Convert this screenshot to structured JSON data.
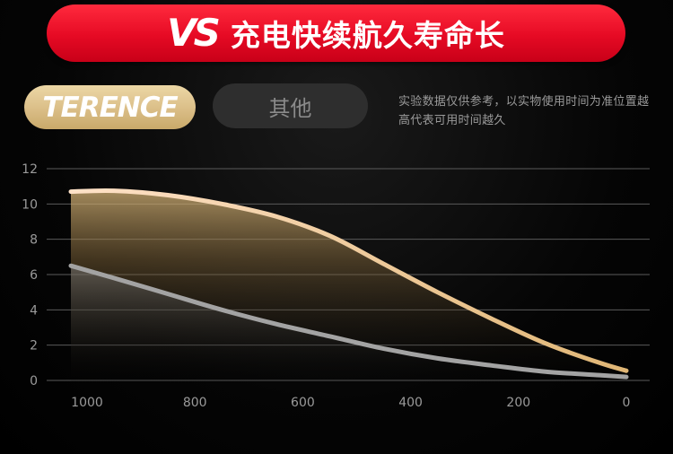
{
  "banner": {
    "logo": "VS",
    "title": "充电快续航久寿命长"
  },
  "legend": {
    "brand": "TERENCE",
    "other": "其他"
  },
  "note": "实验数据仅供参考，以实物使用时间为准位置越高代表可用时间越久",
  "colors": {
    "banner": "#e60a24",
    "terence_line": "#f0d6a8",
    "other_line": "#9a9a9a",
    "legend_gold": "#dcc08a",
    "legend_grey": "#2e2e2e"
  },
  "chart_data": {
    "type": "area",
    "x_reversed": true,
    "xlim": [
      1030,
      0
    ],
    "ylim": [
      0,
      12
    ],
    "x_ticks": [
      1000,
      800,
      600,
      400,
      200,
      0
    ],
    "y_ticks": [
      0,
      2,
      4,
      6,
      8,
      10,
      12
    ],
    "grid": "horizontal",
    "series": [
      {
        "name": "TERENCE",
        "x": [
          1030,
          950,
          850,
          750,
          650,
          550,
          450,
          350,
          250,
          150,
          50,
          0
        ],
        "y": [
          10.7,
          10.75,
          10.5,
          10.0,
          9.3,
          8.2,
          6.6,
          5.0,
          3.5,
          2.1,
          1.0,
          0.55
        ]
      },
      {
        "name": "其他",
        "x": [
          1030,
          950,
          850,
          750,
          650,
          550,
          450,
          350,
          250,
          150,
          50,
          0
        ],
        "y": [
          6.5,
          5.8,
          4.9,
          4.0,
          3.2,
          2.5,
          1.8,
          1.25,
          0.85,
          0.5,
          0.3,
          0.2
        ]
      }
    ]
  }
}
